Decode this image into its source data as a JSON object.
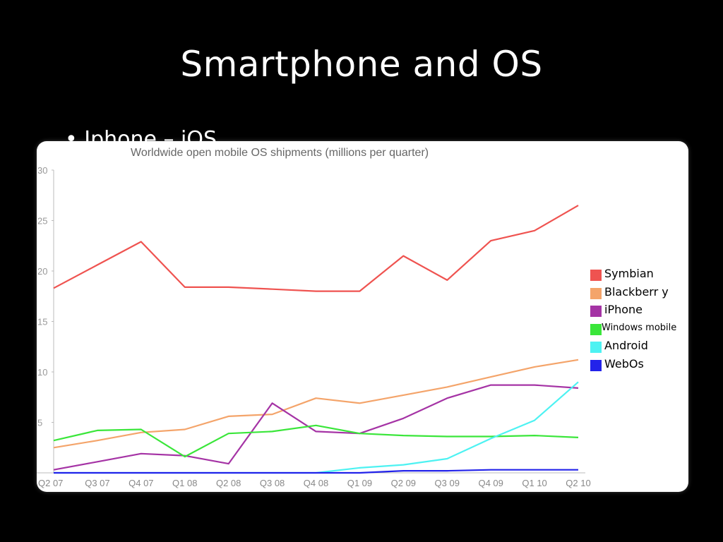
{
  "slide": {
    "title": "Smartphone and OS",
    "bullet_partial": "• Iphone – iOS"
  },
  "chart_data": {
    "type": "line",
    "title": "Worldwide open mobile OS shipments (millions per quarter)",
    "xlabel": "",
    "ylabel": "",
    "categories": [
      "Q2 07",
      "Q3 07",
      "Q4 07",
      "Q1 08",
      "Q2 08",
      "Q3 08",
      "Q4 08",
      "Q1 09",
      "Q2 09",
      "Q3 09",
      "Q4 09",
      "Q1 10",
      "Q2 10"
    ],
    "ylim": [
      0,
      30
    ],
    "yticks": [
      "30",
      "25",
      "20",
      "15",
      "10",
      "5"
    ],
    "grid": false,
    "legend_position": "right",
    "series": [
      {
        "name": "Symbian",
        "color": "#ef5350",
        "values": [
          18.3,
          20.6,
          22.9,
          18.4,
          18.4,
          18.2,
          18.0,
          18.0,
          21.5,
          19.1,
          23.0,
          24.0,
          26.5
        ]
      },
      {
        "name": "Blackberr y",
        "color": "#f4a46a",
        "values": [
          2.5,
          3.2,
          4.0,
          4.3,
          5.6,
          5.8,
          7.4,
          6.9,
          7.7,
          8.5,
          9.5,
          10.5,
          11.2
        ]
      },
      {
        "name": "iPhone",
        "color": "#a533a5",
        "values": [
          0.3,
          1.1,
          1.9,
          1.7,
          0.9,
          6.9,
          4.1,
          3.9,
          5.4,
          7.4,
          8.7,
          8.7,
          8.4
        ]
      },
      {
        "name": "Windows mobile",
        "color": "#3ae63a",
        "values": [
          3.2,
          4.2,
          4.3,
          1.6,
          3.9,
          4.1,
          4.7,
          3.9,
          3.7,
          3.6,
          3.6,
          3.7,
          3.5
        ]
      },
      {
        "name": "Android",
        "color": "#4df2f2",
        "values": [
          0.0,
          0.0,
          0.0,
          0.0,
          0.0,
          0.0,
          0.0,
          0.5,
          0.8,
          1.4,
          3.4,
          5.2,
          9.0
        ]
      },
      {
        "name": "WebOs",
        "color": "#2323ea",
        "values": [
          0.0,
          0.0,
          0.0,
          0.0,
          0.0,
          0.0,
          0.0,
          0.0,
          0.2,
          0.2,
          0.3,
          0.3,
          0.3
        ]
      }
    ]
  }
}
